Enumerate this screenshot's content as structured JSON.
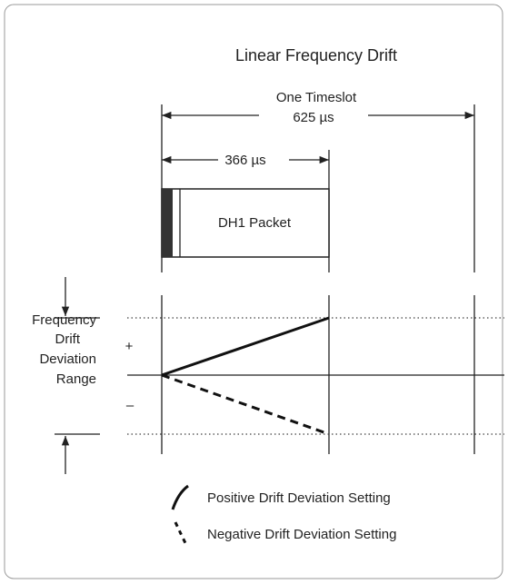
{
  "title": "Linear Frequency Drift",
  "timeslot": {
    "label": "One Timeslot",
    "duration": "625 µs"
  },
  "packet": {
    "duration": "366 µs",
    "label": "DH1 Packet"
  },
  "range_label": [
    "Frequency",
    "Drift",
    "Deviation",
    "Range"
  ],
  "signs": {
    "plus": "+",
    "minus": "–"
  },
  "legend": {
    "positive": "Positive Drift Deviation Setting",
    "negative": "Negative Drift Deviation Setting"
  }
}
